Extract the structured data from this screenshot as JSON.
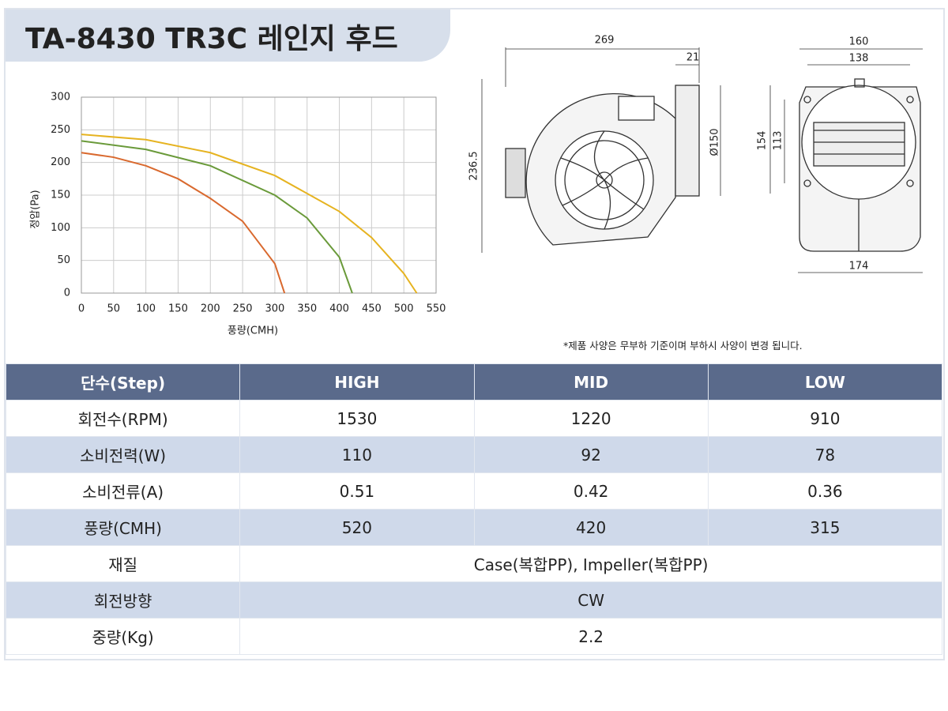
{
  "title": "TA-8430 TR3C 레인지 후드",
  "chart": {
    "type": "line",
    "y_label": "정압(Pa)",
    "x_label": "풍량(CMH)",
    "xlim": [
      0,
      550
    ],
    "xticks": [
      0,
      50,
      100,
      150,
      200,
      250,
      300,
      350,
      400,
      450,
      500,
      550
    ],
    "ylim": [
      0,
      300
    ],
    "yticks": [
      0,
      50,
      100,
      150,
      200,
      250,
      300
    ],
    "grid": true,
    "series": [
      {
        "color": "#e6b320",
        "x": [
          0,
          100,
          200,
          300,
          400,
          450,
          500,
          520
        ],
        "values": [
          243,
          235,
          215,
          180,
          125,
          85,
          30,
          0
        ]
      },
      {
        "color": "#6a9a3a",
        "x": [
          0,
          100,
          200,
          300,
          350,
          400,
          420
        ],
        "values": [
          233,
          220,
          195,
          150,
          115,
          55,
          0
        ]
      },
      {
        "color": "#d9692e",
        "x": [
          0,
          50,
          100,
          150,
          200,
          250,
          300,
          315
        ],
        "values": [
          215,
          208,
          195,
          175,
          145,
          110,
          45,
          0
        ]
      }
    ]
  },
  "drawing": {
    "dimensions": [
      "269",
      "21",
      "236.5",
      "Ø150",
      "160",
      "138",
      "154",
      "113",
      "174"
    ]
  },
  "note": "*제품 사양은 무부하 기준이며 부하시 사양이 변경 됩니다.",
  "table": {
    "header": [
      "단수(Step)",
      "HIGH",
      "MID",
      "LOW"
    ],
    "rows": [
      [
        "회전수(RPM)",
        "1530",
        "1220",
        "910"
      ],
      [
        "소비전력(W)",
        "110",
        "92",
        "78"
      ],
      [
        "소비전류(A)",
        "0.51",
        "0.42",
        "0.36"
      ],
      [
        "풍량(CMH)",
        "520",
        "420",
        "315"
      ],
      [
        "재질",
        "Case(복합PP), Impeller(복합PP)"
      ],
      [
        "회전방향",
        "CW"
      ],
      [
        "중량(Kg)",
        "2.2"
      ]
    ]
  }
}
